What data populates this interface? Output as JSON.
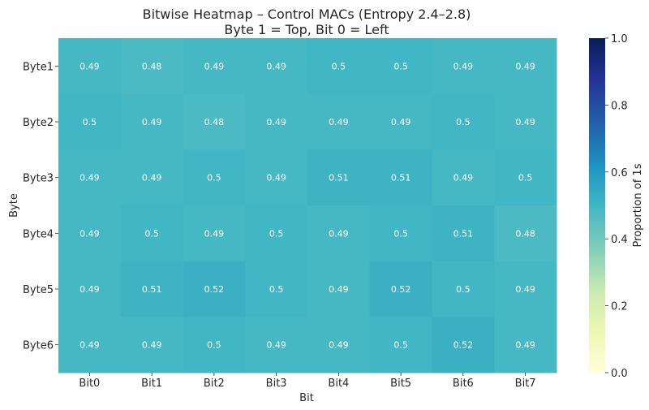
{
  "chart_data": {
    "type": "heatmap",
    "title": "Bitwise Heatmap – Control MACs (Entropy 2.4–2.8)",
    "subtitle": "Byte 1 = Top, Bit 0 = Left",
    "xlabel": "Bit",
    "ylabel": "Byte",
    "x_categories": [
      "Bit0",
      "Bit1",
      "Bit2",
      "Bit3",
      "Bit4",
      "Bit5",
      "Bit6",
      "Bit7"
    ],
    "y_categories": [
      "Byte1",
      "Byte2",
      "Byte3",
      "Byte4",
      "Byte5",
      "Byte6"
    ],
    "values": [
      [
        0.49,
        0.48,
        0.49,
        0.49,
        0.5,
        0.5,
        0.49,
        0.49
      ],
      [
        0.5,
        0.49,
        0.48,
        0.49,
        0.49,
        0.49,
        0.5,
        0.49
      ],
      [
        0.49,
        0.49,
        0.5,
        0.49,
        0.51,
        0.51,
        0.49,
        0.5
      ],
      [
        0.49,
        0.5,
        0.49,
        0.5,
        0.49,
        0.5,
        0.51,
        0.48
      ],
      [
        0.49,
        0.51,
        0.52,
        0.5,
        0.49,
        0.52,
        0.5,
        0.49
      ],
      [
        0.49,
        0.49,
        0.5,
        0.49,
        0.49,
        0.5,
        0.52,
        0.49
      ]
    ],
    "annotation_colors": {
      "light": "#ffffff",
      "dark": "#262626"
    },
    "colormap": "YlGnBu",
    "colorbar": {
      "label": "Proportion of 1s",
      "range": [
        0.0,
        1.0
      ],
      "ticks": [
        "0.0",
        "0.2",
        "0.4",
        "0.6",
        "0.8",
        "1.0"
      ]
    }
  }
}
